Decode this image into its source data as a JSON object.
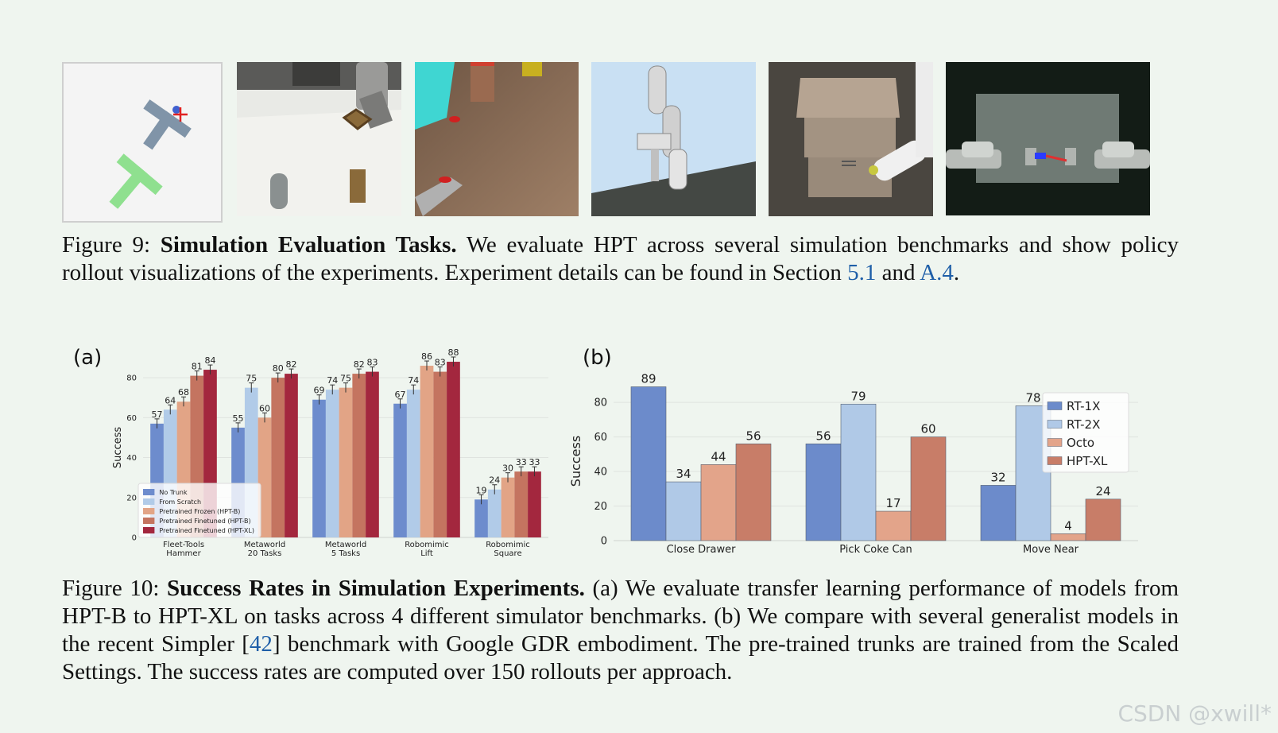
{
  "thumbnails": [
    {
      "name": "push-t-task-thumbnail"
    },
    {
      "name": "metaworld-task-thumbnail"
    },
    {
      "name": "fleet-tools-task-thumbnail"
    },
    {
      "name": "robomimic-task-thumbnail"
    },
    {
      "name": "drawer-task-thumbnail"
    },
    {
      "name": "bimanual-task-thumbnail"
    }
  ],
  "figure9": {
    "label": "Figure 9:",
    "title": "Simulation Evaluation Tasks.",
    "text1": " We evaluate HPT across several simulation benchmarks and show policy rollout visualizations of the experiments. Experiment details can be found in Section ",
    "ref1": "5.1",
    "text2": " and ",
    "ref2": "A.4",
    "text3": "."
  },
  "figure10": {
    "label": "Figure 10:",
    "title": "Success Rates in Simulation Experiments.",
    "text1": " (a) We evaluate transfer learning performance of models from HPT-B to HPT-XL on tasks across 4 different simulator benchmarks. (b) We compare with several generalist models in the recent Simpler [",
    "ref1": "42",
    "text2": "] benchmark with Google GDR embodiment. The pre-trained trunks are trained from the Scaled Settings. The success rates are computed over 150 rollouts per approach."
  },
  "watermark": "CSDN @xwill*",
  "chart_data": [
    {
      "panel_label": "(a)",
      "type": "bar",
      "ylabel": "Success",
      "ylim": [
        0,
        90
      ],
      "yticks": [
        0,
        20,
        40,
        60,
        80
      ],
      "categories": [
        [
          "Fleet-Tools",
          "Hammer"
        ],
        [
          "Metaworld",
          "20 Tasks"
        ],
        [
          "Metaworld",
          "5 Tasks"
        ],
        [
          "Robomimic",
          "Lift"
        ],
        [
          "Robomimic",
          "Square"
        ]
      ],
      "series": [
        {
          "name": "No Trunk",
          "color": "#6d8ccd",
          "values": [
            57,
            55,
            69,
            67,
            19
          ]
        },
        {
          "name": "From Scratch",
          "color": "#b1cbe8",
          "values": [
            64,
            75,
            74,
            74,
            24
          ]
        },
        {
          "name": "Pretrained Frozen (HPT-B)",
          "color": "#e2a486",
          "values": [
            68,
            60,
            75,
            86,
            30
          ]
        },
        {
          "name": "Pretrained Finetuned (HPT-B)",
          "color": "#c47460",
          "values": [
            81,
            80,
            82,
            83,
            33
          ]
        },
        {
          "name": "Pretrained Finetuned (HPT-XL)",
          "color": "#a3273e",
          "values": [
            84,
            82,
            83,
            88,
            33
          ]
        }
      ],
      "legend_position": "bottom-left",
      "grid": true
    },
    {
      "panel_label": "(b)",
      "type": "bar",
      "ylabel": "Success",
      "ylim": [
        0,
        92
      ],
      "yticks": [
        0,
        20,
        40,
        60,
        80
      ],
      "categories": [
        [
          "Close Drawer"
        ],
        [
          "Pick Coke Can"
        ],
        [
          "Move Near"
        ]
      ],
      "series": [
        {
          "name": "RT-1X",
          "color": "#6c8bcb",
          "values": [
            89,
            56,
            32
          ]
        },
        {
          "name": "RT-2X",
          "color": "#b0c9e7",
          "values": [
            34,
            79,
            78
          ]
        },
        {
          "name": "Octo",
          "color": "#e3a48a",
          "values": [
            44,
            17,
            4
          ]
        },
        {
          "name": "HPT-XL",
          "color": "#c87d68",
          "values": [
            56,
            60,
            24
          ]
        }
      ],
      "legend_position": "top-right",
      "grid": true
    }
  ]
}
